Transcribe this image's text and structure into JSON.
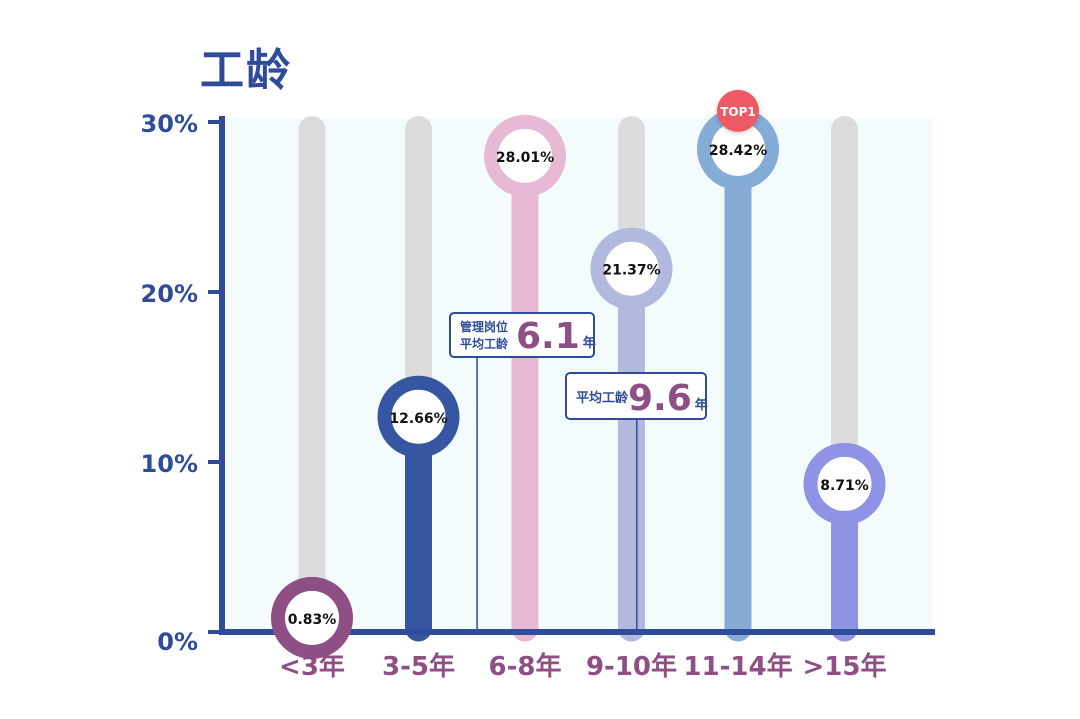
{
  "chart_data": {
    "type": "bar",
    "title": "工龄",
    "categories": [
      "<3年",
      "3-5年",
      "6-8年",
      "9-10年",
      "11-14年",
      ">15年"
    ],
    "values": [
      0.83,
      12.66,
      28.01,
      21.37,
      28.42,
      8.71
    ],
    "value_labels": [
      "0.83%",
      "12.66%",
      "28.01%",
      "21.37%",
      "28.42%",
      "8.71%"
    ],
    "colors": [
      "#8e4f85",
      "#3656a2",
      "#e8b9d5",
      "#b2b9df",
      "#84acd7",
      "#8f93e5"
    ],
    "ylim": [
      0,
      30
    ],
    "yticks": [
      "0%",
      "10%",
      "20%",
      "30%"
    ],
    "ytick_values": [
      0,
      10,
      20,
      30
    ],
    "top_badge": {
      "text": "TOP1",
      "category_index": 4,
      "color": "#ee5a63"
    },
    "annotations": [
      {
        "label_lines": [
          "管理岗位",
          "平均工龄"
        ],
        "value": "6.1",
        "unit": "年",
        "at_years": 6.1
      },
      {
        "label_lines": [
          "平均工龄"
        ],
        "value": "9.6",
        "unit": "年",
        "at_years": 9.6
      }
    ]
  }
}
